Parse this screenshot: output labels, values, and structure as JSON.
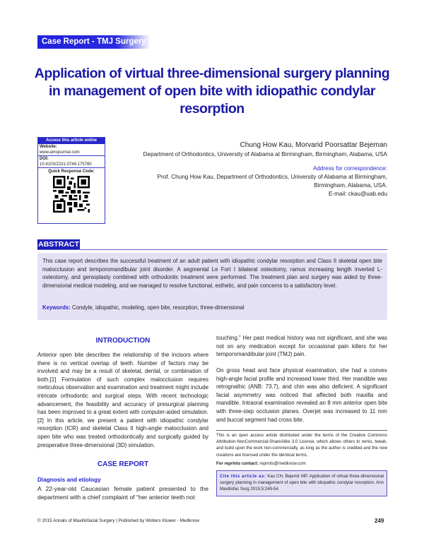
{
  "header": {
    "category": "Case Report - TMJ Surgery",
    "title": "Application of virtual three-dimensional surgery planning in management of open bite with idiopathic condylar resorption"
  },
  "access_box": {
    "heading": "Access this article online",
    "website_label": "Website:",
    "website": "www.amsjournal.com",
    "doi_label": "DOI:",
    "doi": "10.4103/2231-0746.175760",
    "qr_label": "Quick Response Code:"
  },
  "authors": {
    "names": "Chung How Kau, Morvarid Poorsattar Bejeman",
    "affiliation": "Department of Orthodontics, University of Alabama at Birmingham, Birmingham, Alabama, USA",
    "correspondence_label": "Address for correspondence:",
    "correspondence": "Prof. Chung How Kau, Department of Orthodontics, University of Alabama at Birmingham, Birmingham, Alabama, USA.",
    "email": "E-mail: ckau@uab.edu"
  },
  "abstract": {
    "heading": "ABSTRACT",
    "text": "This case report describes the successful treatment of an adult patient with idiopathic condylar resorption and Class II skeletal open bite malocclusion and temporomandibular joint disorder. A segmental Le Fort I bilateral osteotomy, ramus increasing length inverted L-osteotomy, and genioplasty combined with orthodontic treatment were performed. The treatment plan and surgery was aided by three-dimensional medical modeling, and we managed to resolve functional, esthetic, and pain concerns to a satisfactory level.",
    "keywords_label": "Keywords:",
    "keywords": " Condyle, idiopathic, modeling, open bite, resorption, three-dimensional"
  },
  "left_column": {
    "intro_heading": "INTRODUCTION",
    "intro_text": "Anterior open bite describes the relationship of the incisors where there is no vertical overlap of teeth. Number of factors may be involved and may be a result of skeletal, dental, or combination of both.[1] Formulation of such complex malocclusion requires meticulous observation and examination and treatment might include intricate orthodontic and surgical steps. With recent technologic advancement, the feasibility and accuracy of presurgical planning has been improved to a great extent with computer-aided simulation.[2] In this article, we present a patient with idiopathic condylar resorption (ICR) and skeletal Class II high-angle malocclusion and open bite who was treated orthodontically and surgically guided by preoperative three-dimensional (3D) simulation.",
    "case_heading": "CASE REPORT",
    "diag_heading": "Diagnosis and etiology",
    "diag_text": "A 22-year-old Caucasian female patient presented to the department with a chief complaint of “her anterior teeth not"
  },
  "right_column": {
    "para1": "touching.” Her past medical history was not significant, and she was not on any medication except for occasional pain killers for her temporomandibular joint (TMJ) pain.",
    "para2": "On gross head and face physical examination, she had a convex high-angle facial profile and increased lower third. Her mandible was retrognathic (ANB: 73.7), and chin was also deficient. A significant facial asymmetry was noticed that affected both maxilla and mandible. Intraoral examination revealed an 8 mm anterior open bite with three-step occlusion planes. Overjet was increased to 11 mm and buccal segment had cross bite.",
    "license": "This is an open access article distributed under the terms of the Creative Commons Attribution-NonCommercial-ShareAlike 3.0 License, which allows others to remix, tweak, and build upon the work non-commercially, as long as the author is credited and the new creations are licensed under the identical terms.",
    "reprints_label": "For reprints contact:",
    "reprints": " reprints@medknow.com",
    "cite_label": "Cite this article as:",
    "cite": " Kau CH, Bejemir MP. Application of virtual three-dimensional surgery planning in management of open bite with idiopathic condylar resorption. Ann Maxillofac Surg 2015;5:249-54."
  },
  "footer": {
    "text": "© 2015 Annals of Maxillofacial Surgery | Published by Wolters Kluwer - Medknow",
    "page": "249"
  },
  "colors": {
    "accent": "#1a1aa6",
    "abstract_bg": "#e5e1f5"
  }
}
